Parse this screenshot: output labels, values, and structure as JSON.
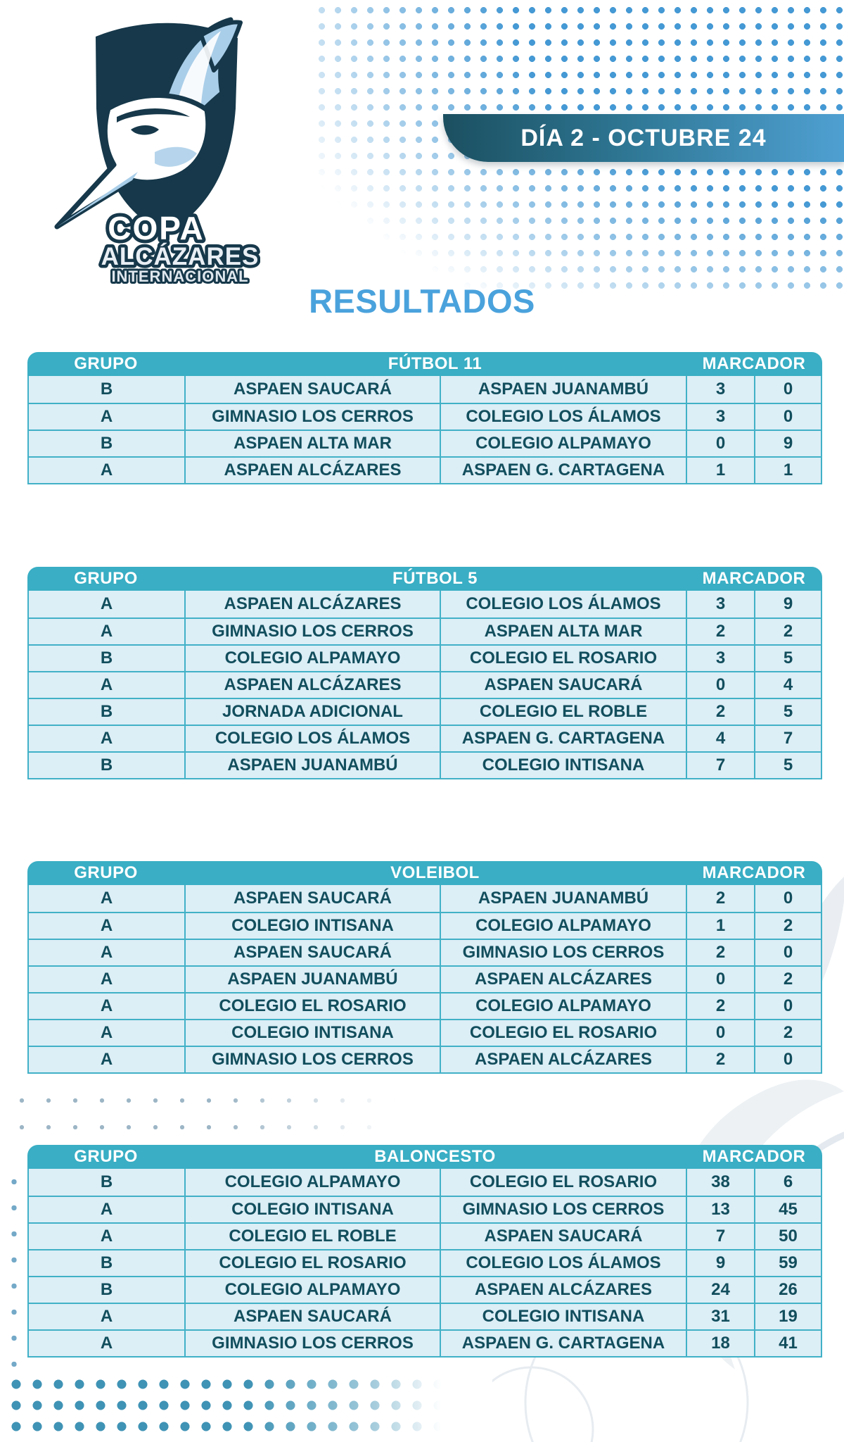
{
  "logo": {
    "line1": "COPA",
    "line2": "ALCÁZARES",
    "line3": "INTERNACIONAL"
  },
  "banner": {
    "label": "DÍA 2 - OCTUBRE 24"
  },
  "title": "RESULTADOS",
  "headers": {
    "group": "GRUPO",
    "score": "MARCADOR"
  },
  "tables": [
    {
      "sport": "FÚTBOL 11",
      "rows": [
        [
          "B",
          "ASPAEN SAUCARÁ",
          "ASPAEN JUANAMBÚ",
          "3",
          "0"
        ],
        [
          "A",
          "GIMNASIO LOS CERROS",
          "COLEGIO LOS ÁLAMOS",
          "3",
          "0"
        ],
        [
          "B",
          "ASPAEN ALTA MAR",
          "COLEGIO ALPAMAYO",
          "0",
          "9"
        ],
        [
          "A",
          "ASPAEN ALCÁZARES",
          "ASPAEN G. CARTAGENA",
          "1",
          "1"
        ]
      ]
    },
    {
      "sport": "FÚTBOL 5",
      "rows": [
        [
          "A",
          "ASPAEN ALCÁZARES",
          "COLEGIO LOS ÁLAMOS",
          "3",
          "9"
        ],
        [
          "A",
          "GIMNASIO LOS CERROS",
          "ASPAEN ALTA MAR",
          "2",
          "2"
        ],
        [
          "B",
          "COLEGIO ALPAMAYO",
          "COLEGIO EL ROSARIO",
          "3",
          "5"
        ],
        [
          "A",
          "ASPAEN ALCÁZARES",
          "ASPAEN SAUCARÁ",
          "0",
          "4"
        ],
        [
          "B",
          "JORNADA ADICIONAL",
          "COLEGIO EL ROBLE",
          "2",
          "5"
        ],
        [
          "A",
          "COLEGIO LOS ÁLAMOS",
          "ASPAEN G. CARTAGENA",
          "4",
          "7"
        ],
        [
          "B",
          "ASPAEN JUANAMBÚ",
          "COLEGIO INTISANA",
          "7",
          "5"
        ]
      ]
    },
    {
      "sport": "VOLEIBOL",
      "rows": [
        [
          "A",
          "ASPAEN SAUCARÁ",
          "ASPAEN JUANAMBÚ",
          "2",
          "0"
        ],
        [
          "A",
          "COLEGIO INTISANA",
          "COLEGIO ALPAMAYO",
          "1",
          "2"
        ],
        [
          "A",
          "ASPAEN SAUCARÁ",
          "GIMNASIO LOS CERROS",
          "2",
          "0"
        ],
        [
          "A",
          "ASPAEN JUANAMBÚ",
          "ASPAEN ALCÁZARES",
          "0",
          "2"
        ],
        [
          "A",
          "COLEGIO EL ROSARIO",
          "COLEGIO ALPAMAYO",
          "2",
          "0"
        ],
        [
          "A",
          "COLEGIO INTISANA",
          "COLEGIO EL ROSARIO",
          "0",
          "2"
        ],
        [
          "A",
          "GIMNASIO LOS CERROS",
          "ASPAEN ALCÁZARES",
          "2",
          "0"
        ]
      ]
    },
    {
      "sport": "BALONCESTO",
      "rows": [
        [
          "B",
          "COLEGIO ALPAMAYO",
          "COLEGIO EL ROSARIO",
          "38",
          "6"
        ],
        [
          "A",
          "COLEGIO INTISANA",
          "GIMNASIO LOS CERROS",
          "13",
          "45"
        ],
        [
          "A",
          "COLEGIO EL ROBLE",
          "ASPAEN SAUCARÁ",
          "7",
          "50"
        ],
        [
          "B",
          "COLEGIO EL ROSARIO",
          "COLEGIO LOS ÁLAMOS",
          "9",
          "59"
        ],
        [
          "B",
          "COLEGIO ALPAMAYO",
          "ASPAEN ALCÁZARES",
          "24",
          "26"
        ],
        [
          "A",
          "ASPAEN SAUCARÁ",
          "COLEGIO INTISANA",
          "31",
          "19"
        ],
        [
          "A",
          "GIMNASIO LOS CERROS",
          "ASPAEN G. CARTAGENA",
          "18",
          "41"
        ]
      ]
    }
  ],
  "colors": {
    "table_header_teal": "#39aec4",
    "table_border_teal": "#41b1c7",
    "row_background": "#dceef6",
    "cell_text": "#124e5d",
    "title_blue": "#4aa2dc",
    "banner_gradient_start": "#1b4f60",
    "banner_gradient_end": "#4fa0d2",
    "dot_blue": "#4599d4"
  }
}
